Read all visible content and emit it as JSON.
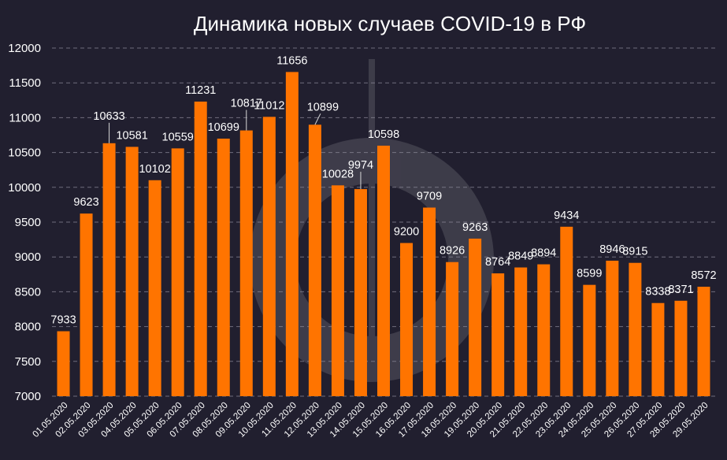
{
  "chart_data": {
    "type": "bar",
    "title": "Динамика новых случаев COVID-19 в РФ",
    "xlabel": "",
    "ylabel": "",
    "ylim": [
      7000,
      12000
    ],
    "yticks": [
      7000,
      7500,
      8000,
      8500,
      9000,
      9500,
      10000,
      10500,
      11000,
      11500,
      12000
    ],
    "grid": true,
    "legend": "none",
    "categories": [
      "01.05.2020",
      "02.05.2020",
      "03.05.2020",
      "04.05.2020",
      "05.05.2020",
      "06.05.2020",
      "07.05.2020",
      "08.05.2020",
      "09.05.2020",
      "10.05.2020",
      "11.05.2020",
      "12.05.2020",
      "13.05.2020",
      "14.05.2020",
      "15.05.2020",
      "16.05.2020",
      "17.05.2020",
      "18.05.2020",
      "19.05.2020",
      "20.05.2020",
      "21.05.2020",
      "22.05.2020",
      "23.05.2020",
      "24.05.2020",
      "25.05.2020",
      "26.05.2020",
      "27.05.2020",
      "28.05.2020",
      "29.05.2020"
    ],
    "values": [
      7933,
      9623,
      10633,
      10581,
      10102,
      10559,
      11231,
      10699,
      10817,
      11012,
      11656,
      10899,
      10028,
      9974,
      10598,
      9200,
      9709,
      8926,
      9263,
      8764,
      8849,
      8894,
      9434,
      8599,
      8946,
      8915,
      8338,
      8371,
      8572
    ],
    "colors": {
      "bar": "#ff7400",
      "background": "#211f2f",
      "text": "#ffffff",
      "grid": "#8a8898"
    }
  }
}
